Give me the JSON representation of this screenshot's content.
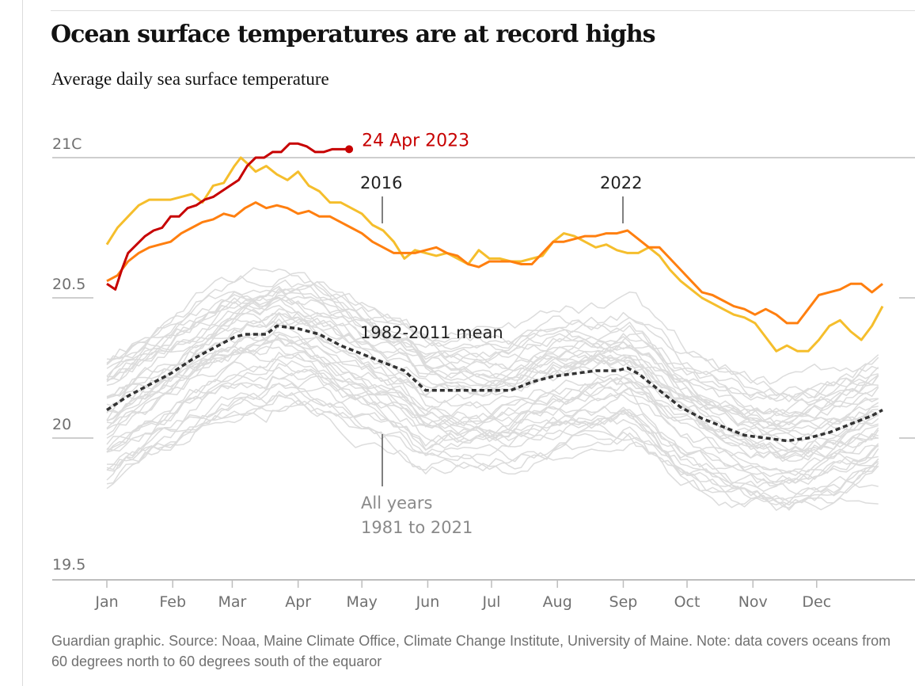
{
  "header": {
    "title": "Ocean surface temperatures are at record highs",
    "subtitle": "Average daily sea surface temperature"
  },
  "footer": {
    "source": "Guardian graphic. Source: Noaa, Maine Climate Office, Climate Change Institute, University of Maine. Note: data covers oceans from 60 degrees north to 60 degrees south of the equaror"
  },
  "chart_data": {
    "type": "line",
    "title": "Ocean surface temperatures are at record highs",
    "subtitle": "Average daily sea surface temperature",
    "xlabel": "",
    "ylabel": "",
    "x_unit": "day of year",
    "xlim": [
      0,
      365
    ],
    "ylim": [
      19.5,
      21.05
    ],
    "grid": true,
    "y_ticks": [
      {
        "value": 21,
        "label": "21C"
      },
      {
        "value": 20.5,
        "label": "20.5"
      },
      {
        "value": 20,
        "label": "20"
      },
      {
        "value": 19.5,
        "label": "19.5"
      }
    ],
    "x_ticks": [
      {
        "value": 0,
        "label": "Jan"
      },
      {
        "value": 31,
        "label": "Feb"
      },
      {
        "value": 59,
        "label": "Mar"
      },
      {
        "value": 90,
        "label": "Apr"
      },
      {
        "value": 120,
        "label": "May"
      },
      {
        "value": 151,
        "label": "Jun"
      },
      {
        "value": 181,
        "label": "Jul"
      },
      {
        "value": 212,
        "label": "Aug"
      },
      {
        "value": 243,
        "label": "Sep"
      },
      {
        "value": 273,
        "label": "Oct"
      },
      {
        "value": 304,
        "label": "Nov"
      },
      {
        "value": 334,
        "label": "Dec"
      }
    ],
    "colors": {
      "2023": "#c70000",
      "2016": "#f5be2c",
      "2022": "#ff7f0f",
      "mean": "#333333",
      "all_years": "#dcdcdc",
      "axis": "#bdbdbd"
    },
    "series": [
      {
        "name": "2023",
        "style": "solid",
        "x": [
          0,
          4,
          7,
          10,
          14,
          18,
          22,
          26,
          30,
          34,
          38,
          42,
          46,
          50,
          54,
          58,
          62,
          66,
          70,
          74,
          78,
          82,
          86,
          90,
          94,
          98,
          102,
          106,
          110,
          114
        ],
        "y": [
          20.55,
          20.53,
          20.6,
          20.66,
          20.69,
          20.72,
          20.74,
          20.75,
          20.79,
          20.79,
          20.82,
          20.83,
          20.85,
          20.86,
          20.88,
          20.9,
          20.92,
          20.97,
          21.0,
          21.0,
          21.02,
          21.02,
          21.05,
          21.05,
          21.04,
          21.02,
          21.02,
          21.03,
          21.03,
          21.03
        ]
      },
      {
        "name": "2016",
        "style": "solid",
        "x": [
          0,
          5,
          10,
          15,
          20,
          25,
          30,
          35,
          40,
          45,
          50,
          55,
          60,
          63,
          66,
          70,
          75,
          80,
          85,
          90,
          95,
          100,
          105,
          110,
          115,
          120,
          125,
          130,
          135,
          140,
          145,
          150,
          155,
          160,
          165,
          170,
          175,
          180,
          185,
          190,
          195,
          200,
          205,
          210,
          215,
          220,
          225,
          230,
          235,
          240,
          245,
          250,
          255,
          260,
          265,
          270,
          275,
          280,
          285,
          290,
          295,
          300,
          305,
          310,
          315,
          320,
          325,
          330,
          335,
          340,
          345,
          350,
          355,
          360,
          365
        ],
        "y": [
          20.69,
          20.75,
          20.79,
          20.83,
          20.85,
          20.85,
          20.85,
          20.86,
          20.87,
          20.84,
          20.9,
          20.91,
          20.97,
          21.0,
          20.98,
          20.95,
          20.97,
          20.94,
          20.92,
          20.95,
          20.9,
          20.88,
          20.84,
          20.84,
          20.82,
          20.8,
          20.76,
          20.74,
          20.7,
          20.64,
          20.67,
          20.66,
          20.65,
          20.66,
          20.64,
          20.62,
          20.67,
          20.64,
          20.64,
          20.63,
          20.63,
          20.64,
          20.65,
          20.7,
          20.73,
          20.72,
          20.7,
          20.68,
          20.69,
          20.67,
          20.66,
          20.66,
          20.68,
          20.65,
          20.6,
          20.56,
          20.53,
          20.5,
          20.48,
          20.46,
          20.44,
          20.43,
          20.41,
          20.36,
          20.31,
          20.33,
          20.31,
          20.31,
          20.35,
          20.4,
          20.42,
          20.38,
          20.35,
          20.4,
          20.47
        ]
      },
      {
        "name": "2022",
        "style": "solid",
        "x": [
          0,
          5,
          10,
          15,
          20,
          25,
          30,
          35,
          40,
          45,
          50,
          55,
          60,
          65,
          70,
          75,
          80,
          85,
          90,
          95,
          100,
          105,
          110,
          115,
          120,
          125,
          130,
          135,
          140,
          145,
          150,
          155,
          160,
          165,
          170,
          175,
          180,
          185,
          190,
          195,
          200,
          205,
          210,
          215,
          220,
          225,
          230,
          235,
          240,
          245,
          250,
          255,
          260,
          265,
          270,
          275,
          280,
          285,
          290,
          295,
          300,
          305,
          310,
          315,
          320,
          325,
          330,
          335,
          340,
          345,
          350,
          355,
          360,
          365
        ],
        "y": [
          20.56,
          20.58,
          20.63,
          20.66,
          20.68,
          20.69,
          20.7,
          20.73,
          20.75,
          20.77,
          20.78,
          20.8,
          20.79,
          20.82,
          20.84,
          20.82,
          20.83,
          20.82,
          20.8,
          20.81,
          20.79,
          20.79,
          20.77,
          20.75,
          20.73,
          20.7,
          20.68,
          20.66,
          20.66,
          20.66,
          20.67,
          20.68,
          20.66,
          20.65,
          20.62,
          20.61,
          20.63,
          20.63,
          20.63,
          20.62,
          20.62,
          20.66,
          20.7,
          20.7,
          20.71,
          20.72,
          20.72,
          20.73,
          20.73,
          20.74,
          20.71,
          20.68,
          20.68,
          20.64,
          20.6,
          20.56,
          20.52,
          20.51,
          20.49,
          20.47,
          20.46,
          20.44,
          20.46,
          20.44,
          20.41,
          20.41,
          20.46,
          20.51,
          20.52,
          20.53,
          20.55,
          20.55,
          20.52,
          20.55
        ]
      },
      {
        "name": "1982-2011 mean",
        "style": "dashed",
        "x": [
          0,
          10,
          20,
          30,
          40,
          50,
          55,
          60,
          65,
          70,
          75,
          80,
          90,
          100,
          110,
          120,
          130,
          140,
          150,
          160,
          170,
          180,
          190,
          200,
          210,
          220,
          230,
          240,
          245,
          250,
          260,
          270,
          280,
          290,
          300,
          310,
          320,
          330,
          340,
          350,
          360,
          365
        ],
        "y": [
          20.1,
          20.15,
          20.19,
          20.23,
          20.28,
          20.32,
          20.34,
          20.36,
          20.37,
          20.37,
          20.37,
          20.4,
          20.39,
          20.37,
          20.33,
          20.3,
          20.27,
          20.24,
          20.17,
          20.17,
          20.17,
          20.17,
          20.17,
          20.2,
          20.22,
          20.23,
          20.24,
          20.24,
          20.25,
          20.23,
          20.17,
          20.11,
          20.07,
          20.04,
          20.01,
          20.0,
          19.99,
          20.0,
          20.02,
          20.05,
          20.08,
          20.1
        ]
      }
    ],
    "all_years_band": {
      "name": "All years 1981 to 2021",
      "count_approx": 41,
      "range_note": "grey lines spanning roughly 19.75 to 20.85"
    },
    "annotations": [
      {
        "text": "24 Apr 2023",
        "series": "2023",
        "color": "#c70000"
      },
      {
        "text": "2016",
        "series": "2016"
      },
      {
        "text": "2022",
        "series": "2022"
      },
      {
        "text": "1982-2011 mean",
        "series": "1982-2011 mean"
      },
      {
        "text_lines": [
          "All years",
          "1981 to 2021"
        ],
        "series": "all_years"
      }
    ]
  }
}
